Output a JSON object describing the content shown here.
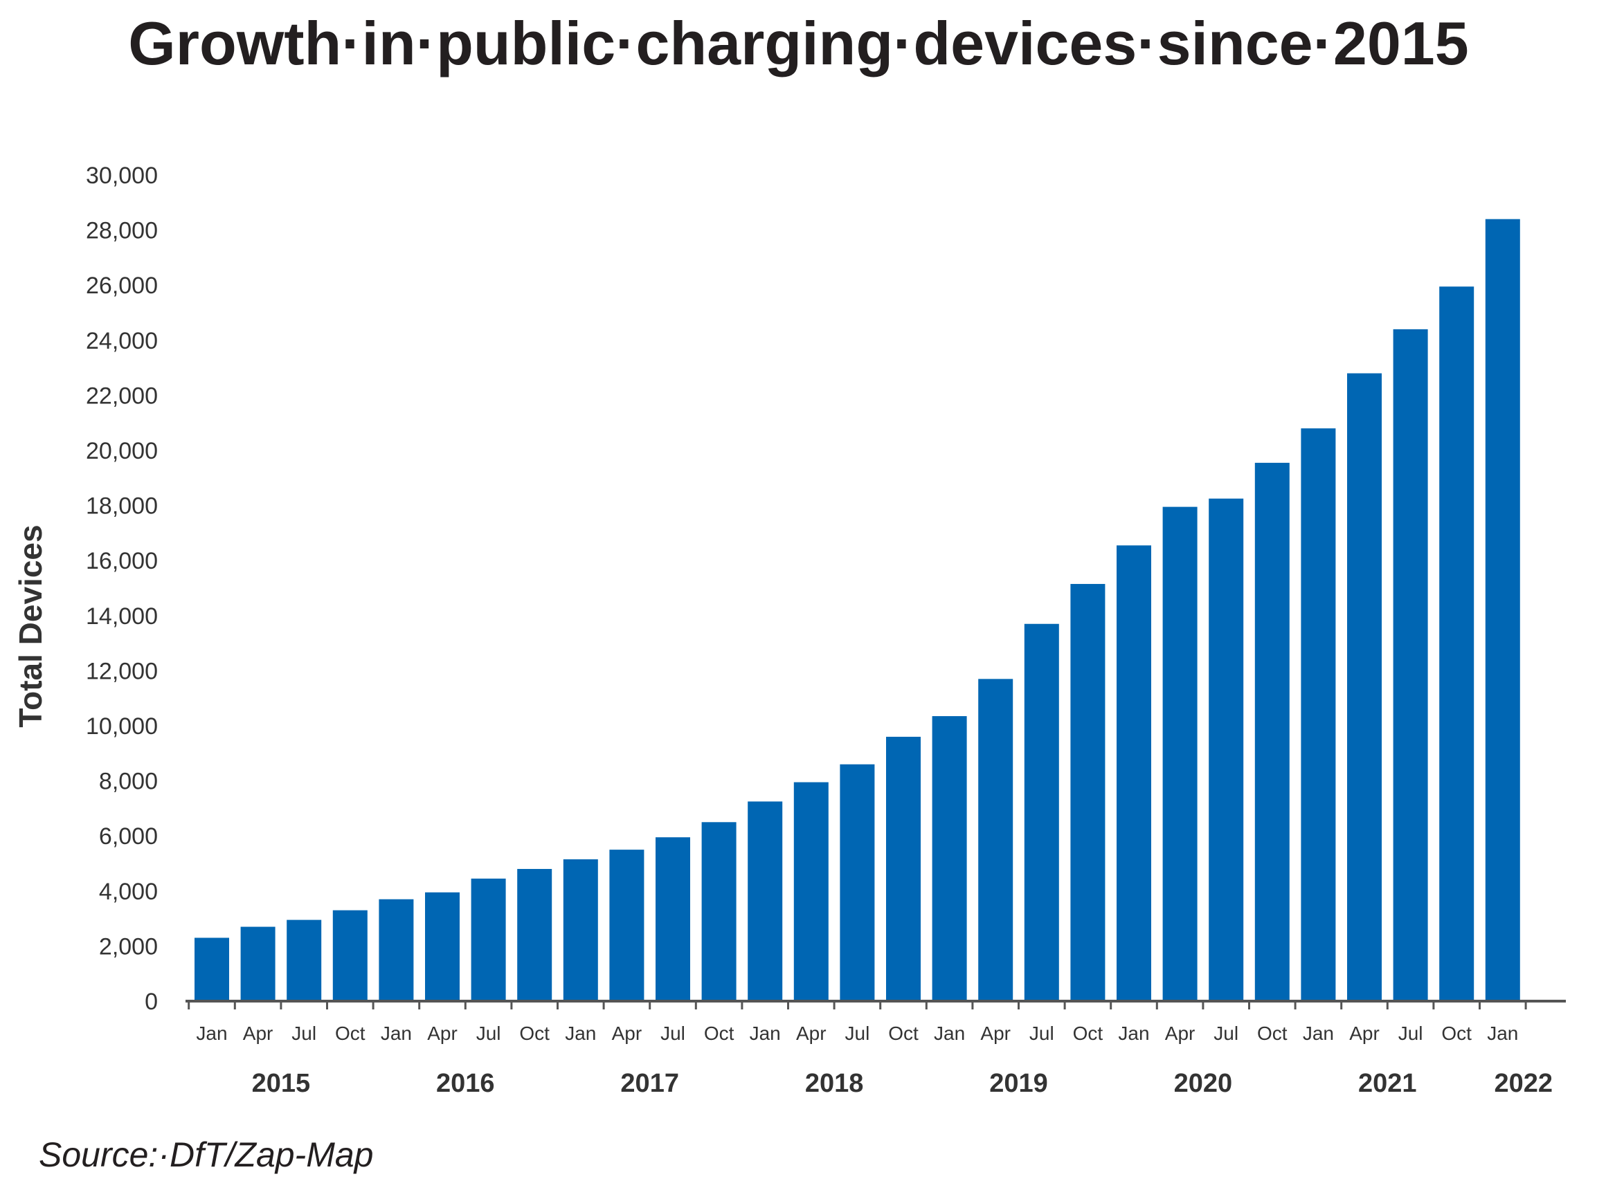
{
  "title": "Growth·in·public·charging·devices·since·2015",
  "source": "Source:·DfT/Zap-Map",
  "chart_data": {
    "type": "bar",
    "title": "Growth·in·public·charging·devices·since·2015",
    "ylabel": "Total Devices",
    "xlabel": "",
    "ylim": [
      0,
      30000
    ],
    "yticks": [
      "0",
      "2,000",
      "4,000",
      "6,000",
      "8,000",
      "10,000",
      "12,000",
      "14,000",
      "16,000",
      "18,000",
      "20,000",
      "22,000",
      "24,000",
      "26,000",
      "28,000",
      "30,000"
    ],
    "categories": [
      "Jan",
      "Apr",
      "Jul",
      "Oct",
      "Jan",
      "Apr",
      "Jul",
      "Oct",
      "Jan",
      "Apr",
      "Jul",
      "Oct",
      "Jan",
      "Apr",
      "Jul",
      "Oct",
      "Jan",
      "Apr",
      "Jul",
      "Oct",
      "Jan",
      "Apr",
      "Jul",
      "Oct",
      "Jan",
      "Apr",
      "Jul",
      "Oct",
      "Jan"
    ],
    "years": [
      "2015",
      "2016",
      "2017",
      "2018",
      "2019",
      "2020",
      "2021",
      "2022"
    ],
    "values": [
      2300,
      2700,
      2950,
      3300,
      3700,
      3950,
      4450,
      4800,
      5150,
      5500,
      5950,
      6500,
      7250,
      7950,
      8600,
      9600,
      10350,
      11700,
      13700,
      15150,
      16550,
      17950,
      18250,
      19550,
      20800,
      22800,
      24400,
      25950,
      28400
    ],
    "bar_color": "#0066b3",
    "grid": false,
    "legend": "none"
  }
}
